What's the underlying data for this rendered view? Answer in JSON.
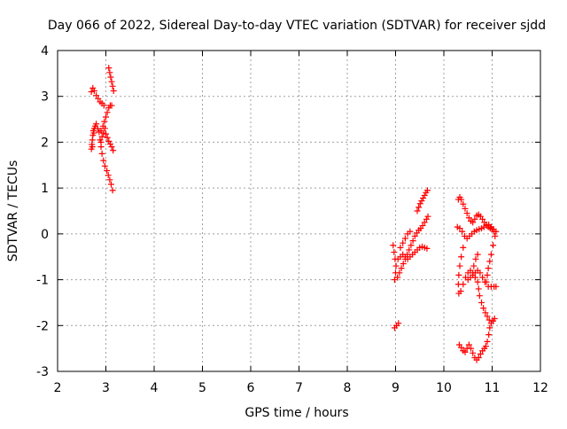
{
  "chart_data": {
    "type": "scatter",
    "title": "Day 066 of 2022, Sidereal Day-to-day VTEC variation (SDTVAR) for receiver sjdd",
    "xlabel": "GPS time / hours",
    "ylabel": "SDTVAR / TECUs",
    "xlim": [
      2,
      12
    ],
    "ylim": [
      -3,
      4
    ],
    "xticks": [
      "2",
      "3",
      "4",
      "5",
      "6",
      "7",
      "8",
      "9",
      "10",
      "11",
      "12"
    ],
    "yticks": [
      "-3",
      "-2",
      "-1",
      "0",
      "1",
      "2",
      "3",
      "4"
    ],
    "grid": true,
    "marker": "+",
    "color": "#ff0000",
    "series": [
      {
        "name": "SDTVAR",
        "points": [
          [
            2.7,
            1.85
          ],
          [
            2.71,
            1.95
          ],
          [
            2.72,
            2.05
          ],
          [
            2.73,
            2.15
          ],
          [
            2.74,
            2.25
          ],
          [
            2.76,
            2.3
          ],
          [
            2.78,
            2.35
          ],
          [
            2.8,
            2.4
          ],
          [
            2.83,
            2.3
          ],
          [
            2.86,
            2.22
          ],
          [
            2.9,
            2.25
          ],
          [
            2.94,
            2.35
          ],
          [
            2.97,
            2.45
          ],
          [
            3.0,
            2.55
          ],
          [
            3.03,
            2.65
          ],
          [
            3.06,
            2.75
          ],
          [
            3.09,
            2.8
          ],
          [
            3.12,
            2.8
          ],
          [
            2.7,
            3.1
          ],
          [
            2.73,
            3.18
          ],
          [
            2.76,
            3.12
          ],
          [
            2.8,
            3.02
          ],
          [
            2.84,
            2.95
          ],
          [
            2.88,
            2.88
          ],
          [
            2.92,
            2.85
          ],
          [
            2.96,
            2.8
          ],
          [
            3.06,
            3.62
          ],
          [
            3.08,
            3.52
          ],
          [
            3.1,
            3.42
          ],
          [
            3.12,
            3.32
          ],
          [
            3.14,
            3.22
          ],
          [
            3.16,
            3.12
          ],
          [
            2.88,
            2.05
          ],
          [
            2.9,
            1.9
          ],
          [
            2.92,
            1.75
          ],
          [
            2.95,
            1.6
          ],
          [
            2.98,
            1.48
          ],
          [
            3.02,
            1.38
          ],
          [
            3.05,
            1.28
          ],
          [
            3.08,
            1.18
          ],
          [
            3.11,
            1.08
          ],
          [
            3.14,
            0.95
          ],
          [
            3.0,
            2.18
          ],
          [
            3.03,
            2.1
          ],
          [
            3.06,
            2.02
          ],
          [
            3.09,
            1.96
          ],
          [
            3.12,
            1.9
          ],
          [
            3.15,
            1.82
          ],
          [
            2.98,
            2.3
          ],
          [
            2.95,
            2.2
          ],
          [
            2.92,
            2.12
          ],
          [
            2.9,
            2.0
          ],
          [
            2.72,
            1.9
          ],
          [
            2.75,
            2.2
          ],
          [
            8.98,
            -2.05
          ],
          [
            9.02,
            -2.0
          ],
          [
            9.06,
            -1.95
          ],
          [
            8.95,
            -0.25
          ],
          [
            8.97,
            -0.4
          ],
          [
            8.99,
            -0.55
          ],
          [
            9.01,
            -0.7
          ],
          [
            9.0,
            -0.85
          ],
          [
            8.98,
            -1.0
          ],
          [
            9.04,
            -0.95
          ],
          [
            9.08,
            -0.85
          ],
          [
            9.12,
            -0.75
          ],
          [
            9.16,
            -0.65
          ],
          [
            9.2,
            -0.55
          ],
          [
            9.24,
            -0.45
          ],
          [
            9.28,
            -0.35
          ],
          [
            9.32,
            -0.25
          ],
          [
            9.36,
            -0.15
          ],
          [
            9.4,
            -0.05
          ],
          [
            9.44,
            0.02
          ],
          [
            9.48,
            0.08
          ],
          [
            9.52,
            0.12
          ],
          [
            9.56,
            0.18
          ],
          [
            9.6,
            0.25
          ],
          [
            9.64,
            0.32
          ],
          [
            9.67,
            0.38
          ],
          [
            9.05,
            -0.55
          ],
          [
            9.1,
            -0.5
          ],
          [
            9.15,
            -0.45
          ],
          [
            9.2,
            -0.5
          ],
          [
            9.25,
            -0.55
          ],
          [
            9.3,
            -0.5
          ],
          [
            9.35,
            -0.45
          ],
          [
            9.4,
            -0.4
          ],
          [
            9.45,
            -0.35
          ],
          [
            9.5,
            -0.3
          ],
          [
            9.55,
            -0.28
          ],
          [
            9.6,
            -0.3
          ],
          [
            9.65,
            -0.32
          ],
          [
            9.45,
            0.5
          ],
          [
            9.48,
            0.58
          ],
          [
            9.51,
            0.66
          ],
          [
            9.54,
            0.72
          ],
          [
            9.57,
            0.78
          ],
          [
            9.6,
            0.84
          ],
          [
            9.63,
            0.9
          ],
          [
            9.66,
            0.95
          ],
          [
            9.1,
            -0.3
          ],
          [
            9.15,
            -0.2
          ],
          [
            9.2,
            -0.1
          ],
          [
            9.25,
            0.0
          ],
          [
            9.3,
            0.05
          ],
          [
            10.3,
            0.75
          ],
          [
            10.33,
            0.8
          ],
          [
            10.36,
            0.75
          ],
          [
            10.4,
            0.65
          ],
          [
            10.44,
            0.55
          ],
          [
            10.48,
            0.45
          ],
          [
            10.52,
            0.35
          ],
          [
            10.56,
            0.28
          ],
          [
            10.6,
            0.25
          ],
          [
            10.64,
            0.32
          ],
          [
            10.68,
            0.4
          ],
          [
            10.72,
            0.42
          ],
          [
            10.76,
            0.38
          ],
          [
            10.8,
            0.32
          ],
          [
            10.84,
            0.25
          ],
          [
            10.88,
            0.2
          ],
          [
            10.92,
            0.15
          ],
          [
            10.96,
            0.12
          ],
          [
            11.0,
            0.1
          ],
          [
            11.04,
            0.05
          ],
          [
            10.28,
            0.15
          ],
          [
            10.33,
            0.12
          ],
          [
            10.38,
            0.05
          ],
          [
            10.43,
            -0.05
          ],
          [
            10.48,
            -0.1
          ],
          [
            10.53,
            -0.05
          ],
          [
            10.58,
            0.0
          ],
          [
            10.63,
            0.05
          ],
          [
            10.68,
            0.08
          ],
          [
            10.73,
            0.1
          ],
          [
            10.78,
            0.12
          ],
          [
            10.83,
            0.15
          ],
          [
            10.88,
            0.18
          ],
          [
            10.93,
            0.2
          ],
          [
            10.98,
            0.15
          ],
          [
            11.03,
            0.1
          ],
          [
            11.08,
            0.05
          ],
          [
            11.06,
            -0.05
          ],
          [
            11.02,
            -0.25
          ],
          [
            10.98,
            -0.45
          ],
          [
            10.95,
            -0.6
          ],
          [
            10.92,
            -0.75
          ],
          [
            10.9,
            -0.9
          ],
          [
            10.88,
            -1.05
          ],
          [
            10.92,
            -1.15
          ],
          [
            10.98,
            -1.15
          ],
          [
            11.04,
            -1.15
          ],
          [
            11.08,
            -1.15
          ],
          [
            10.4,
            -0.3
          ],
          [
            10.36,
            -0.5
          ],
          [
            10.33,
            -0.7
          ],
          [
            10.31,
            -0.9
          ],
          [
            10.3,
            -1.1
          ],
          [
            10.31,
            -1.3
          ],
          [
            10.35,
            -1.25
          ],
          [
            10.4,
            -1.1
          ],
          [
            10.45,
            -0.95
          ],
          [
            10.5,
            -0.85
          ],
          [
            10.55,
            -0.8
          ],
          [
            10.6,
            -0.85
          ],
          [
            10.65,
            -0.95
          ],
          [
            10.7,
            -1.05
          ],
          [
            10.72,
            -1.2
          ],
          [
            10.74,
            -1.35
          ],
          [
            10.78,
            -1.5
          ],
          [
            10.82,
            -1.62
          ],
          [
            10.86,
            -1.72
          ],
          [
            10.9,
            -1.8
          ],
          [
            10.94,
            -1.88
          ],
          [
            10.98,
            -1.95
          ],
          [
            11.02,
            -1.9
          ],
          [
            11.05,
            -1.85
          ],
          [
            10.95,
            -2.05
          ],
          [
            10.93,
            -2.2
          ],
          [
            10.9,
            -2.35
          ],
          [
            10.87,
            -2.45
          ],
          [
            10.84,
            -2.5
          ],
          [
            10.8,
            -2.55
          ],
          [
            10.76,
            -2.62
          ],
          [
            10.72,
            -2.7
          ],
          [
            10.68,
            -2.75
          ],
          [
            10.64,
            -2.7
          ],
          [
            10.6,
            -2.6
          ],
          [
            10.56,
            -2.5
          ],
          [
            10.52,
            -2.42
          ],
          [
            10.48,
            -2.5
          ],
          [
            10.44,
            -2.58
          ],
          [
            10.4,
            -2.55
          ],
          [
            10.36,
            -2.48
          ],
          [
            10.32,
            -2.42
          ],
          [
            10.5,
            -1.0
          ],
          [
            10.55,
            -0.95
          ],
          [
            10.6,
            -0.9
          ],
          [
            10.65,
            -0.85
          ],
          [
            10.7,
            -0.8
          ],
          [
            10.75,
            -0.85
          ],
          [
            10.8,
            -0.95
          ],
          [
            10.85,
            -1.05
          ],
          [
            10.62,
            -0.7
          ],
          [
            10.66,
            -0.55
          ],
          [
            10.7,
            -0.45
          ]
        ]
      }
    ]
  }
}
